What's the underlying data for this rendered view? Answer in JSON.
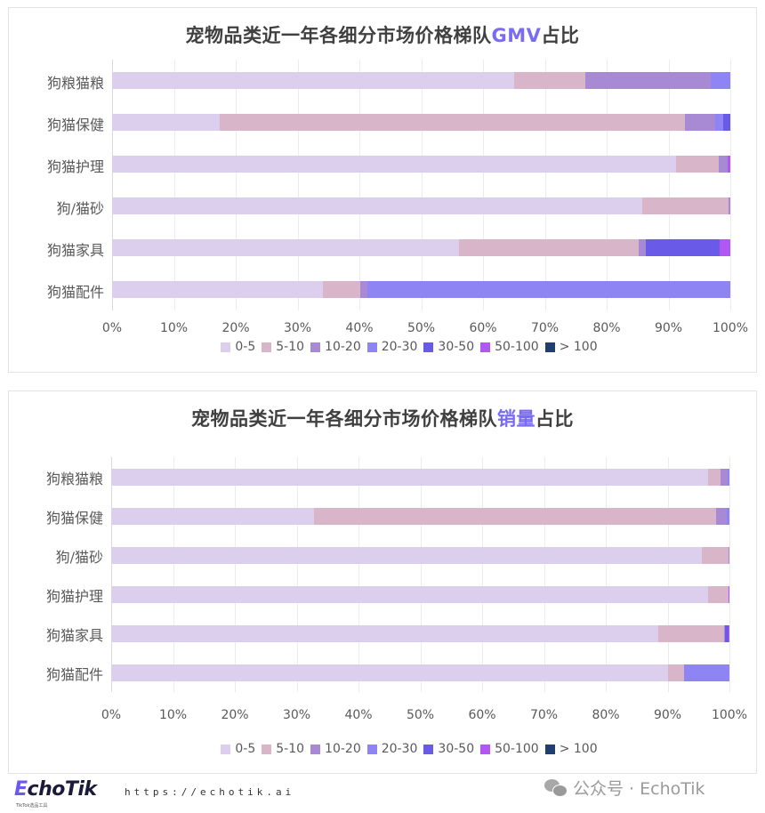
{
  "legend": {
    "items": [
      {
        "label": "0-5",
        "color": "#dccfee"
      },
      {
        "label": "5-10",
        "color": "#d8b5c8"
      },
      {
        "label": "10-20",
        "color": "#a88ad4"
      },
      {
        "label": "20-30",
        "color": "#8e84f4"
      },
      {
        "label": "30-50",
        "color": "#6a5ae8"
      },
      {
        "label": "50-100",
        "color": "#b158f4"
      },
      {
        "label": "> 100",
        "color": "#1f3f6e"
      }
    ]
  },
  "charts": [
    {
      "title_pre": "宠物品类近一年各细分市场价格梯队",
      "title_hl": "GMV",
      "title_post": "占比"
    },
    {
      "title_pre": "宠物品类近一年各细分市场价格梯队",
      "title_hl": "销量",
      "title_post": "占比"
    }
  ],
  "ticks": [
    "0%",
    "10%",
    "20%",
    "30%",
    "40%",
    "50%",
    "60%",
    "70%",
    "80%",
    "90%",
    "100%"
  ],
  "footer": {
    "logo_e": "E",
    "logo_rest": "choTik",
    "logo_sub": "TikTok选品工具",
    "url": "https://echotik.ai",
    "watermark": "公众号 · EchoTik"
  },
  "chart_data": [
    {
      "type": "bar",
      "orientation": "horizontal",
      "stacked": "percent",
      "title": "宠物品类近一年各细分市场价格梯队GMV占比",
      "xlabel": "",
      "ylabel": "",
      "xlim": [
        0,
        100
      ],
      "x_ticks": [
        "0%",
        "10%",
        "20%",
        "30%",
        "40%",
        "50%",
        "60%",
        "70%",
        "80%",
        "90%",
        "100%"
      ],
      "grid": true,
      "legend_position": "bottom",
      "categories": [
        "狗粮猫粮",
        "狗猫保健",
        "狗猫护理",
        "狗/猫砂",
        "狗猫家具",
        "狗猫配件"
      ],
      "series": [
        {
          "name": "0-5",
          "color": "#dccfee",
          "values": [
            65.0,
            17.4,
            91.2,
            85.8,
            56.1,
            34.1
          ]
        },
        {
          "name": "5-10",
          "color": "#d8b5c8",
          "values": [
            11.5,
            75.3,
            6.9,
            13.9,
            29.1,
            6.0
          ]
        },
        {
          "name": "10-20",
          "color": "#a88ad4",
          "values": [
            20.3,
            4.9,
            1.5,
            0.3,
            1.1,
            1.2
          ]
        },
        {
          "name": "20-30",
          "color": "#8e84f4",
          "values": [
            3.2,
            1.3,
            0.0,
            0.0,
            0.0,
            58.7
          ]
        },
        {
          "name": "30-50",
          "color": "#6a5ae8",
          "values": [
            0.0,
            1.1,
            0.0,
            0.0,
            12.0,
            0.0
          ]
        },
        {
          "name": "50-100",
          "color": "#b158f4",
          "values": [
            0.0,
            0.0,
            0.4,
            0.0,
            1.7,
            0.0
          ]
        },
        {
          "name": "> 100",
          "color": "#1f3f6e",
          "values": [
            0.0,
            0.0,
            0.0,
            0.0,
            0.0,
            0.0
          ]
        }
      ]
    },
    {
      "type": "bar",
      "orientation": "horizontal",
      "stacked": "percent",
      "title": "宠物品类近一年各细分市场价格梯队销量占比",
      "xlabel": "",
      "ylabel": "",
      "xlim": [
        0,
        100
      ],
      "x_ticks": [
        "0%",
        "10%",
        "20%",
        "30%",
        "40%",
        "50%",
        "60%",
        "70%",
        "80%",
        "90%",
        "100%"
      ],
      "grid": true,
      "legend_position": "bottom",
      "categories": [
        "狗粮猫粮",
        "狗猫保健",
        "狗/猫砂",
        "狗猫护理",
        "狗猫家具",
        "狗猫配件"
      ],
      "series": [
        {
          "name": "0-5",
          "color": "#dccfee",
          "values": [
            96.5,
            32.8,
            95.5,
            96.5,
            88.5,
            90.0
          ]
        },
        {
          "name": "5-10",
          "color": "#d8b5c8",
          "values": [
            2.0,
            65.0,
            4.3,
            3.3,
            10.6,
            2.7
          ]
        },
        {
          "name": "10-20",
          "color": "#a88ad4",
          "values": [
            1.2,
            1.8,
            0.2,
            0.0,
            0.2,
            0.0
          ]
        },
        {
          "name": "20-30",
          "color": "#8e84f4",
          "values": [
            0.3,
            0.4,
            0.0,
            0.0,
            0.0,
            7.3
          ]
        },
        {
          "name": "30-50",
          "color": "#6a5ae8",
          "values": [
            0.0,
            0.0,
            0.0,
            0.0,
            0.6,
            0.0
          ]
        },
        {
          "name": "50-100",
          "color": "#b158f4",
          "values": [
            0.0,
            0.0,
            0.0,
            0.2,
            0.1,
            0.0
          ]
        },
        {
          "name": "> 100",
          "color": "#1f3f6e",
          "values": [
            0.0,
            0.0,
            0.0,
            0.0,
            0.0,
            0.0
          ]
        }
      ]
    }
  ]
}
